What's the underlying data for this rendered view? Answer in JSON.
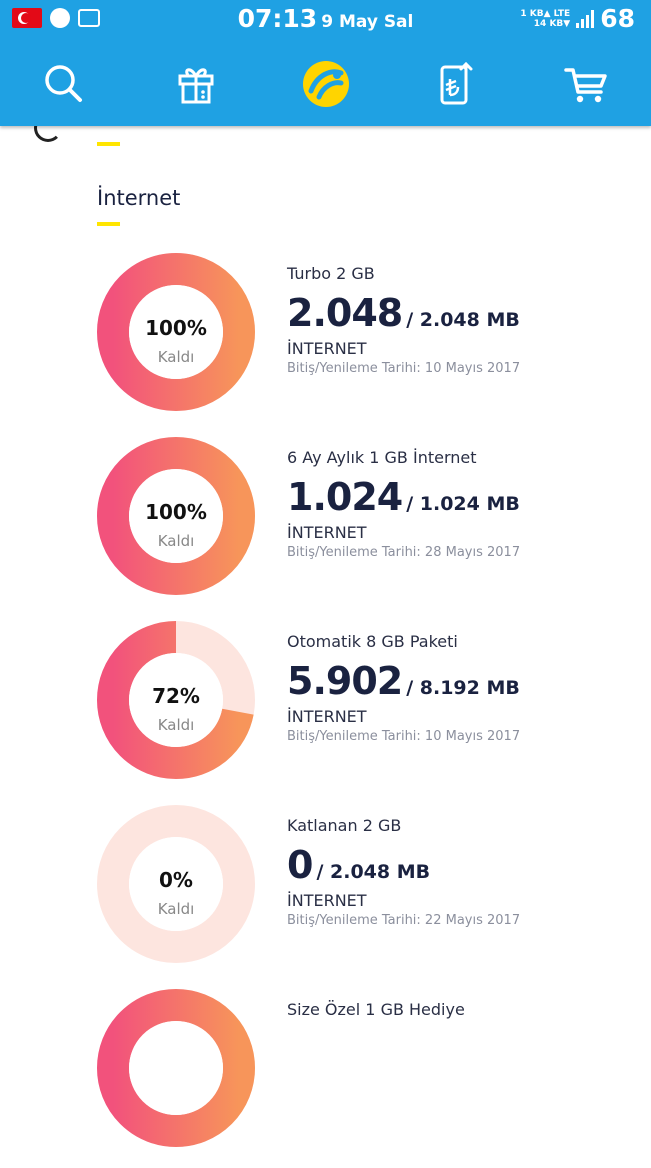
{
  "status_bar": {
    "time": "07:13",
    "date": "9 May Sal",
    "up_rate": "1 KB▲",
    "down_rate": "14 KB▼",
    "network": "LTE",
    "battery": "68"
  },
  "colors": {
    "header": "#1fa1e3",
    "accent": "#ffe500",
    "ring_start": "#f7955a",
    "ring_end": "#f2527c",
    "ring_track": "#fde5df"
  },
  "nav": {
    "icons": [
      "search-icon",
      "gift-icon",
      "brand-logo-icon",
      "mobile-topup-icon",
      "cart-icon"
    ]
  },
  "section": {
    "title": "İnternet"
  },
  "packages": [
    {
      "name": "Turbo 2 GB",
      "remaining": "2.048",
      "total": "/ 2.048 MB",
      "type": "İNTERNET",
      "date": "Bitiş/Yenileme Tarihi: 10 Mayıs 2017",
      "percent_label": "100%",
      "percent": 100,
      "caption": "Kaldı"
    },
    {
      "name": "6 Ay Aylık 1 GB İnternet",
      "remaining": "1.024",
      "total": "/ 1.024 MB",
      "type": "İNTERNET",
      "date": "Bitiş/Yenileme Tarihi: 28 Mayıs 2017",
      "percent_label": "100%",
      "percent": 100,
      "caption": "Kaldı"
    },
    {
      "name": "Otomatik 8 GB Paketi",
      "remaining": "5.902",
      "total": "/ 8.192 MB",
      "type": "İNTERNET",
      "date": "Bitiş/Yenileme Tarihi: 10 Mayıs 2017",
      "percent_label": "72%",
      "percent": 72,
      "caption": "Kaldı"
    },
    {
      "name": "Katlanan 2 GB",
      "remaining": "0",
      "total": "/ 2.048 MB",
      "type": "İNTERNET",
      "date": "Bitiş/Yenileme Tarihi: 22 Mayıs 2017",
      "percent_label": "0%",
      "percent": 0,
      "caption": "Kaldı"
    },
    {
      "name": "Size Özel 1 GB Hediye",
      "percent": 100
    }
  ]
}
